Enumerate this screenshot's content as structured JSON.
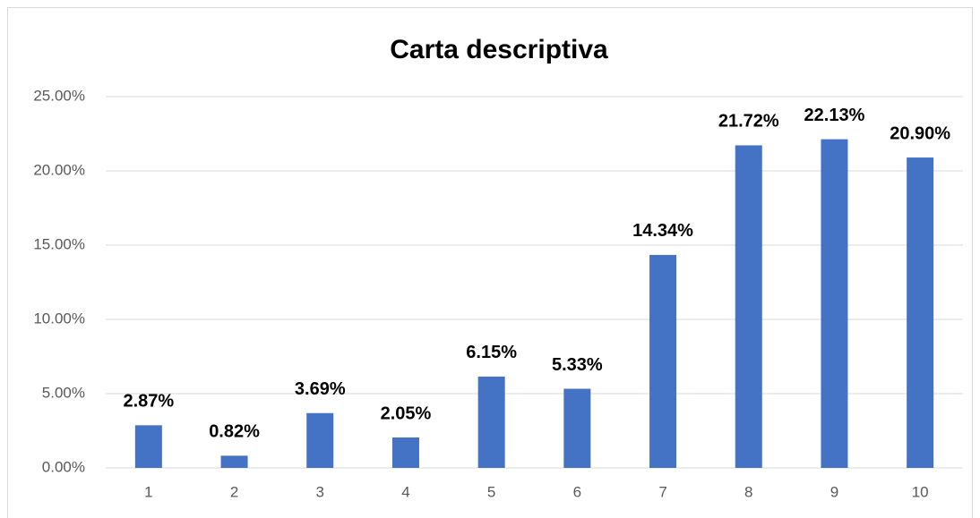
{
  "chart_data": {
    "type": "bar",
    "title": "Carta descriptiva",
    "categories": [
      "1",
      "2",
      "3",
      "4",
      "5",
      "6",
      "7",
      "8",
      "9",
      "10"
    ],
    "values": [
      2.87,
      0.82,
      3.69,
      2.05,
      6.15,
      5.33,
      14.34,
      21.72,
      22.13,
      20.9
    ],
    "value_labels": [
      "2.87%",
      "0.82%",
      "3.69%",
      "2.05%",
      "6.15%",
      "5.33%",
      "14.34%",
      "21.72%",
      "22.13%",
      "20.90%"
    ],
    "color": "#4472c4",
    "ylim": [
      0,
      25
    ],
    "yticks": [
      {
        "value": 0,
        "label": "0.00%"
      },
      {
        "value": 5,
        "label": "5.00%"
      },
      {
        "value": 10,
        "label": "10.00%"
      },
      {
        "value": 15,
        "label": "15.00%"
      },
      {
        "value": 20,
        "label": "20.00%"
      },
      {
        "value": 25,
        "label": "25.00%"
      }
    ],
    "grid": true
  }
}
